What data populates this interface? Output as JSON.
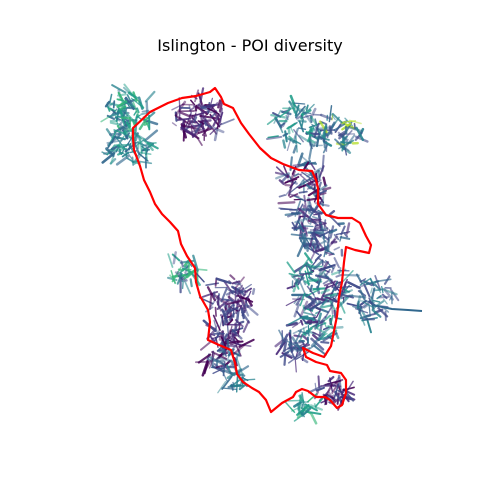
{
  "map": {
    "title": "Islington - POI diversity",
    "boundary_color": "#ff0000",
    "street_palette": [
      "#440154",
      "#482878",
      "#3e4989",
      "#31688e",
      "#26828e",
      "#1f9e89",
      "#35b779",
      "#6ece58",
      "#b5de2b"
    ],
    "background": "#ffffff"
  }
}
